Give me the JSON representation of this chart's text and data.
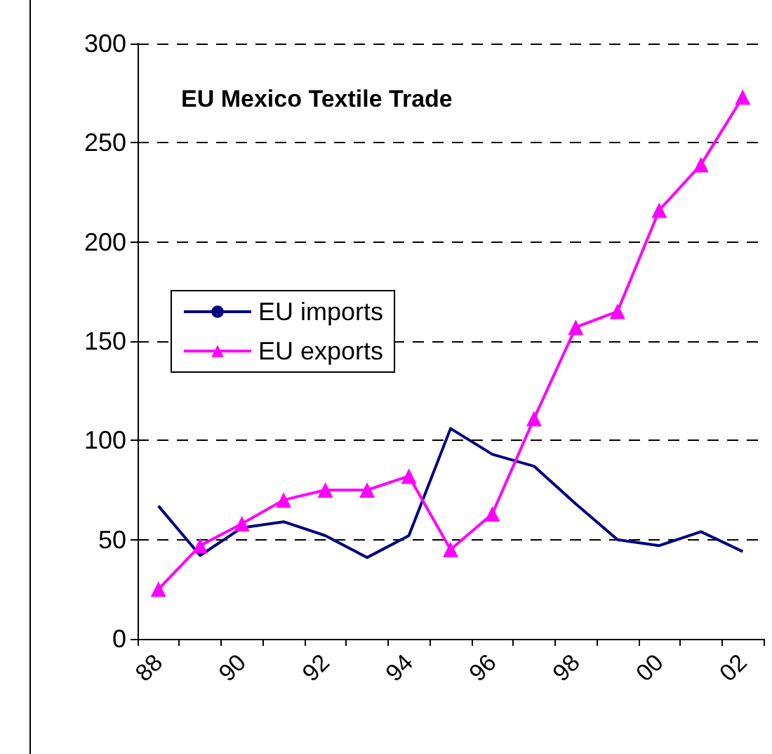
{
  "chart_data": {
    "type": "line",
    "title": "EU Mexico Textile Trade",
    "categories": [
      "88",
      null,
      "90",
      null,
      "92",
      null,
      "94",
      null,
      "96",
      null,
      "98",
      null,
      "00",
      null,
      "02"
    ],
    "series": [
      {
        "name": "EU imports",
        "color": "#000080",
        "marker": "none",
        "values": [
          67,
          42,
          56,
          59,
          52,
          41,
          52,
          106,
          93,
          87,
          68,
          50,
          47,
          54,
          44
        ]
      },
      {
        "name": "EU exports",
        "color": "#ff00ff",
        "marker": "triangle",
        "values": [
          25,
          47,
          58,
          70,
          75,
          75,
          82,
          45,
          63,
          111,
          157,
          165,
          216,
          239,
          273
        ]
      }
    ],
    "ylim": [
      0,
      300
    ],
    "yticks": [
      0,
      50,
      100,
      150,
      200,
      250,
      300
    ],
    "grid": "y",
    "legend": "left"
  }
}
